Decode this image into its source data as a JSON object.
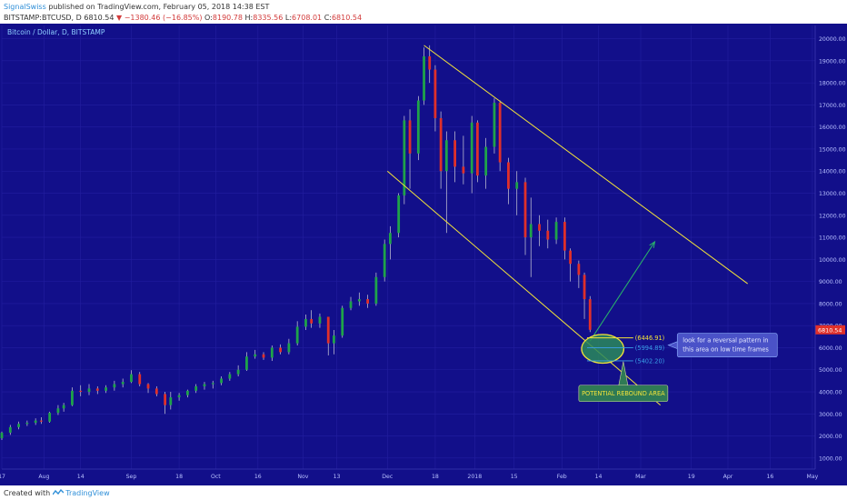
{
  "header": {
    "author": "SignalSwiss",
    "published": "published on TradingView.com, February 05, 2018 14:38 EST",
    "symbol": "BITSTAMP:BTCUSD, D",
    "last": "6810.54",
    "change_arrow": "▼",
    "change": "−1380.46 (−16.85%)",
    "o_label": "O:",
    "o_val": "8190.78",
    "h_label": "H:",
    "h_val": "8335.56",
    "l_label": "L:",
    "l_val": "6708.01",
    "c_label": "C:",
    "c_val": "6810.54"
  },
  "footer": {
    "created_with": "Created with",
    "brand": "TradingView"
  },
  "colors": {
    "background": "#120f8a",
    "grid": "#231fa0",
    "up": "#1fa34a",
    "down": "#e0302a",
    "wick": "#cfcfd8",
    "channel": "#f2e23a",
    "arrow": "#29b36a",
    "zone_fill": "#2a8a5a",
    "zone_edge": "#f2e23a",
    "level_line": "#3aa0e8",
    "callout_fill": "#4a52c8",
    "rebound_fill": "#2f7a55",
    "last_badge": "#e0302a"
  },
  "chart_data": {
    "type": "candlestick",
    "title": "Bitcoin / Dollar, D, BITSTAMP",
    "x_tick_labels": [
      "17",
      "Aug",
      "14",
      "Sep",
      "18",
      "Oct",
      "16",
      "Nov",
      "13",
      "Dec",
      "18",
      "2018",
      "15",
      "Feb",
      "14",
      "Mar",
      "19",
      "Apr",
      "16",
      "May"
    ],
    "y_tick_labels": [
      "1000.00",
      "2000.00",
      "3000.00",
      "4000.00",
      "5000.00",
      "6000.00",
      "7000.00",
      "8000.00",
      "9000.00",
      "10000.00",
      "11000.00",
      "12000.00",
      "13000.00",
      "14000.00",
      "15000.00",
      "16000.00",
      "17000.00",
      "18000.00",
      "19000.00",
      "20000.00"
    ],
    "ylim": [
      500,
      20600
    ],
    "grid": true,
    "start_date": "2017-07-17",
    "x_range_days": [
      0,
      289
    ],
    "candles": [
      [
        0,
        1900,
        2200,
        1820,
        2150
      ],
      [
        3,
        2150,
        2500,
        2050,
        2400
      ],
      [
        6,
        2400,
        2650,
        2300,
        2550
      ],
      [
        9,
        2550,
        2700,
        2450,
        2600
      ],
      [
        12,
        2600,
        2800,
        2500,
        2700
      ],
      [
        14,
        2700,
        2850,
        2550,
        2650
      ],
      [
        17,
        2650,
        3100,
        2600,
        3050
      ],
      [
        20,
        3050,
        3400,
        2950,
        3250
      ],
      [
        22,
        3250,
        3500,
        3100,
        3400
      ],
      [
        25,
        3400,
        4200,
        3350,
        4050
      ],
      [
        28,
        4050,
        4300,
        3800,
        4000
      ],
      [
        31,
        4000,
        4350,
        3850,
        4150
      ],
      [
        34,
        4150,
        4250,
        3900,
        4050
      ],
      [
        37,
        4050,
        4300,
        3950,
        4200
      ],
      [
        40,
        4200,
        4500,
        4050,
        4350
      ],
      [
        43,
        4350,
        4600,
        4200,
        4450
      ],
      [
        46,
        4450,
        4980,
        4400,
        4800
      ],
      [
        49,
        4800,
        4900,
        4250,
        4350
      ],
      [
        52,
        4350,
        4400,
        3950,
        4150
      ],
      [
        55,
        4150,
        4250,
        3800,
        3900
      ],
      [
        58,
        3900,
        4000,
        3000,
        3400
      ],
      [
        60,
        3400,
        4000,
        3200,
        3750
      ],
      [
        63,
        3750,
        3950,
        3600,
        3850
      ],
      [
        66,
        3850,
        4100,
        3750,
        4050
      ],
      [
        69,
        4050,
        4350,
        3950,
        4250
      ],
      [
        72,
        4250,
        4450,
        4100,
        4350
      ],
      [
        75,
        4350,
        4500,
        4150,
        4400
      ],
      [
        78,
        4400,
        4700,
        4300,
        4600
      ],
      [
        81,
        4600,
        4900,
        4500,
        4800
      ],
      [
        84,
        4800,
        5200,
        4700,
        5000
      ],
      [
        87,
        5000,
        5800,
        4950,
        5600
      ],
      [
        90,
        5600,
        5900,
        5500,
        5700
      ],
      [
        93,
        5700,
        5800,
        5450,
        5550
      ],
      [
        96,
        5550,
        6100,
        5400,
        6000
      ],
      [
        99,
        6000,
        6150,
        5700,
        5800
      ],
      [
        102,
        5800,
        6400,
        5700,
        6200
      ],
      [
        105,
        6200,
        7200,
        6100,
        6950
      ],
      [
        108,
        6950,
        7500,
        6800,
        7300
      ],
      [
        110,
        7300,
        7700,
        6900,
        7100
      ],
      [
        113,
        7100,
        7550,
        6900,
        7400
      ],
      [
        116,
        7400,
        7300,
        5650,
        6200
      ],
      [
        118,
        6200,
        6800,
        5700,
        6550
      ],
      [
        121,
        6550,
        7900,
        6450,
        7800
      ],
      [
        124,
        7800,
        8300,
        7700,
        8100
      ],
      [
        127,
        8100,
        8500,
        7900,
        8200
      ],
      [
        130,
        8200,
        8400,
        7800,
        8000
      ],
      [
        133,
        8000,
        9400,
        7900,
        9200
      ],
      [
        136,
        9200,
        10900,
        9000,
        10700
      ],
      [
        138,
        10700,
        11500,
        10000,
        11200
      ],
      [
        141,
        11200,
        13000,
        11000,
        12900
      ],
      [
        143,
        12900,
        16500,
        12500,
        16300
      ],
      [
        145,
        16300,
        16800,
        13200,
        14800
      ],
      [
        148,
        14800,
        17400,
        14500,
        17200
      ],
      [
        150,
        17200,
        19600,
        17000,
        19200
      ],
      [
        152,
        19200,
        19700,
        18000,
        18600
      ],
      [
        154,
        18600,
        18800,
        15800,
        16400
      ],
      [
        156,
        16400,
        16700,
        13200,
        14000
      ],
      [
        158,
        14000,
        15800,
        11200,
        15400
      ],
      [
        161,
        15400,
        15800,
        13500,
        14200
      ],
      [
        164,
        14200,
        15600,
        13400,
        13900
      ],
      [
        167,
        13900,
        16500,
        13000,
        16200
      ],
      [
        169,
        16200,
        16300,
        13500,
        13800
      ],
      [
        172,
        13800,
        15500,
        13200,
        15100
      ],
      [
        175,
        15100,
        17300,
        14800,
        17100
      ],
      [
        177,
        17100,
        17200,
        14000,
        14400
      ],
      [
        180,
        14400,
        14600,
        12500,
        13200
      ],
      [
        183,
        13200,
        14000,
        12000,
        13500
      ],
      [
        186,
        13500,
        13700,
        10200,
        11000
      ],
      [
        188,
        11000,
        12800,
        9200,
        11600
      ],
      [
        191,
        11600,
        12000,
        10600,
        11300
      ],
      [
        194,
        11300,
        11800,
        10500,
        10900
      ],
      [
        197,
        10900,
        11900,
        10700,
        11700
      ],
      [
        200,
        11700,
        11900,
        10000,
        10400
      ],
      [
        202,
        10400,
        10500,
        9000,
        9800
      ],
      [
        205,
        9800,
        9950,
        8700,
        9300
      ],
      [
        207,
        9300,
        9400,
        7300,
        8200
      ],
      [
        209,
        8200,
        8336,
        6708,
        6810
      ]
    ],
    "channel": {
      "upper": {
        "from": [
          150,
          19700
        ],
        "to": [
          265,
          8900
        ]
      },
      "lower": {
        "from": [
          137,
          14000
        ],
        "to": [
          234,
          3400
        ]
      }
    },
    "zone_ellipse": {
      "center_day": 213.5,
      "center_price": 5950,
      "radius_days": 7.5,
      "radius_price": 650
    },
    "arrow": {
      "from": [
        209,
        6300
      ],
      "to": [
        232,
        10800
      ]
    },
    "levels": [
      {
        "label": "(6446.91)",
        "price": 6446.91,
        "x_day": 225,
        "color": "#f2e23a"
      },
      {
        "label": "(5994.89)",
        "price": 5994.89,
        "x_day": 225,
        "color": "#3aa0e8"
      },
      {
        "label": "(5402.20)",
        "price": 5402.2,
        "x_day": 225,
        "color": "#3aa0e8"
      }
    ],
    "annotations": {
      "callout_text": "look for a reversal pattern in this area on low time frames",
      "callout_line1": "look for a reversal pattern in",
      "callout_line2": "this area on low time frames",
      "rebound_label": "POTENTIAL REBOUND AREA"
    },
    "last_price_label": "6810.54",
    "last_price": 6810.54
  }
}
